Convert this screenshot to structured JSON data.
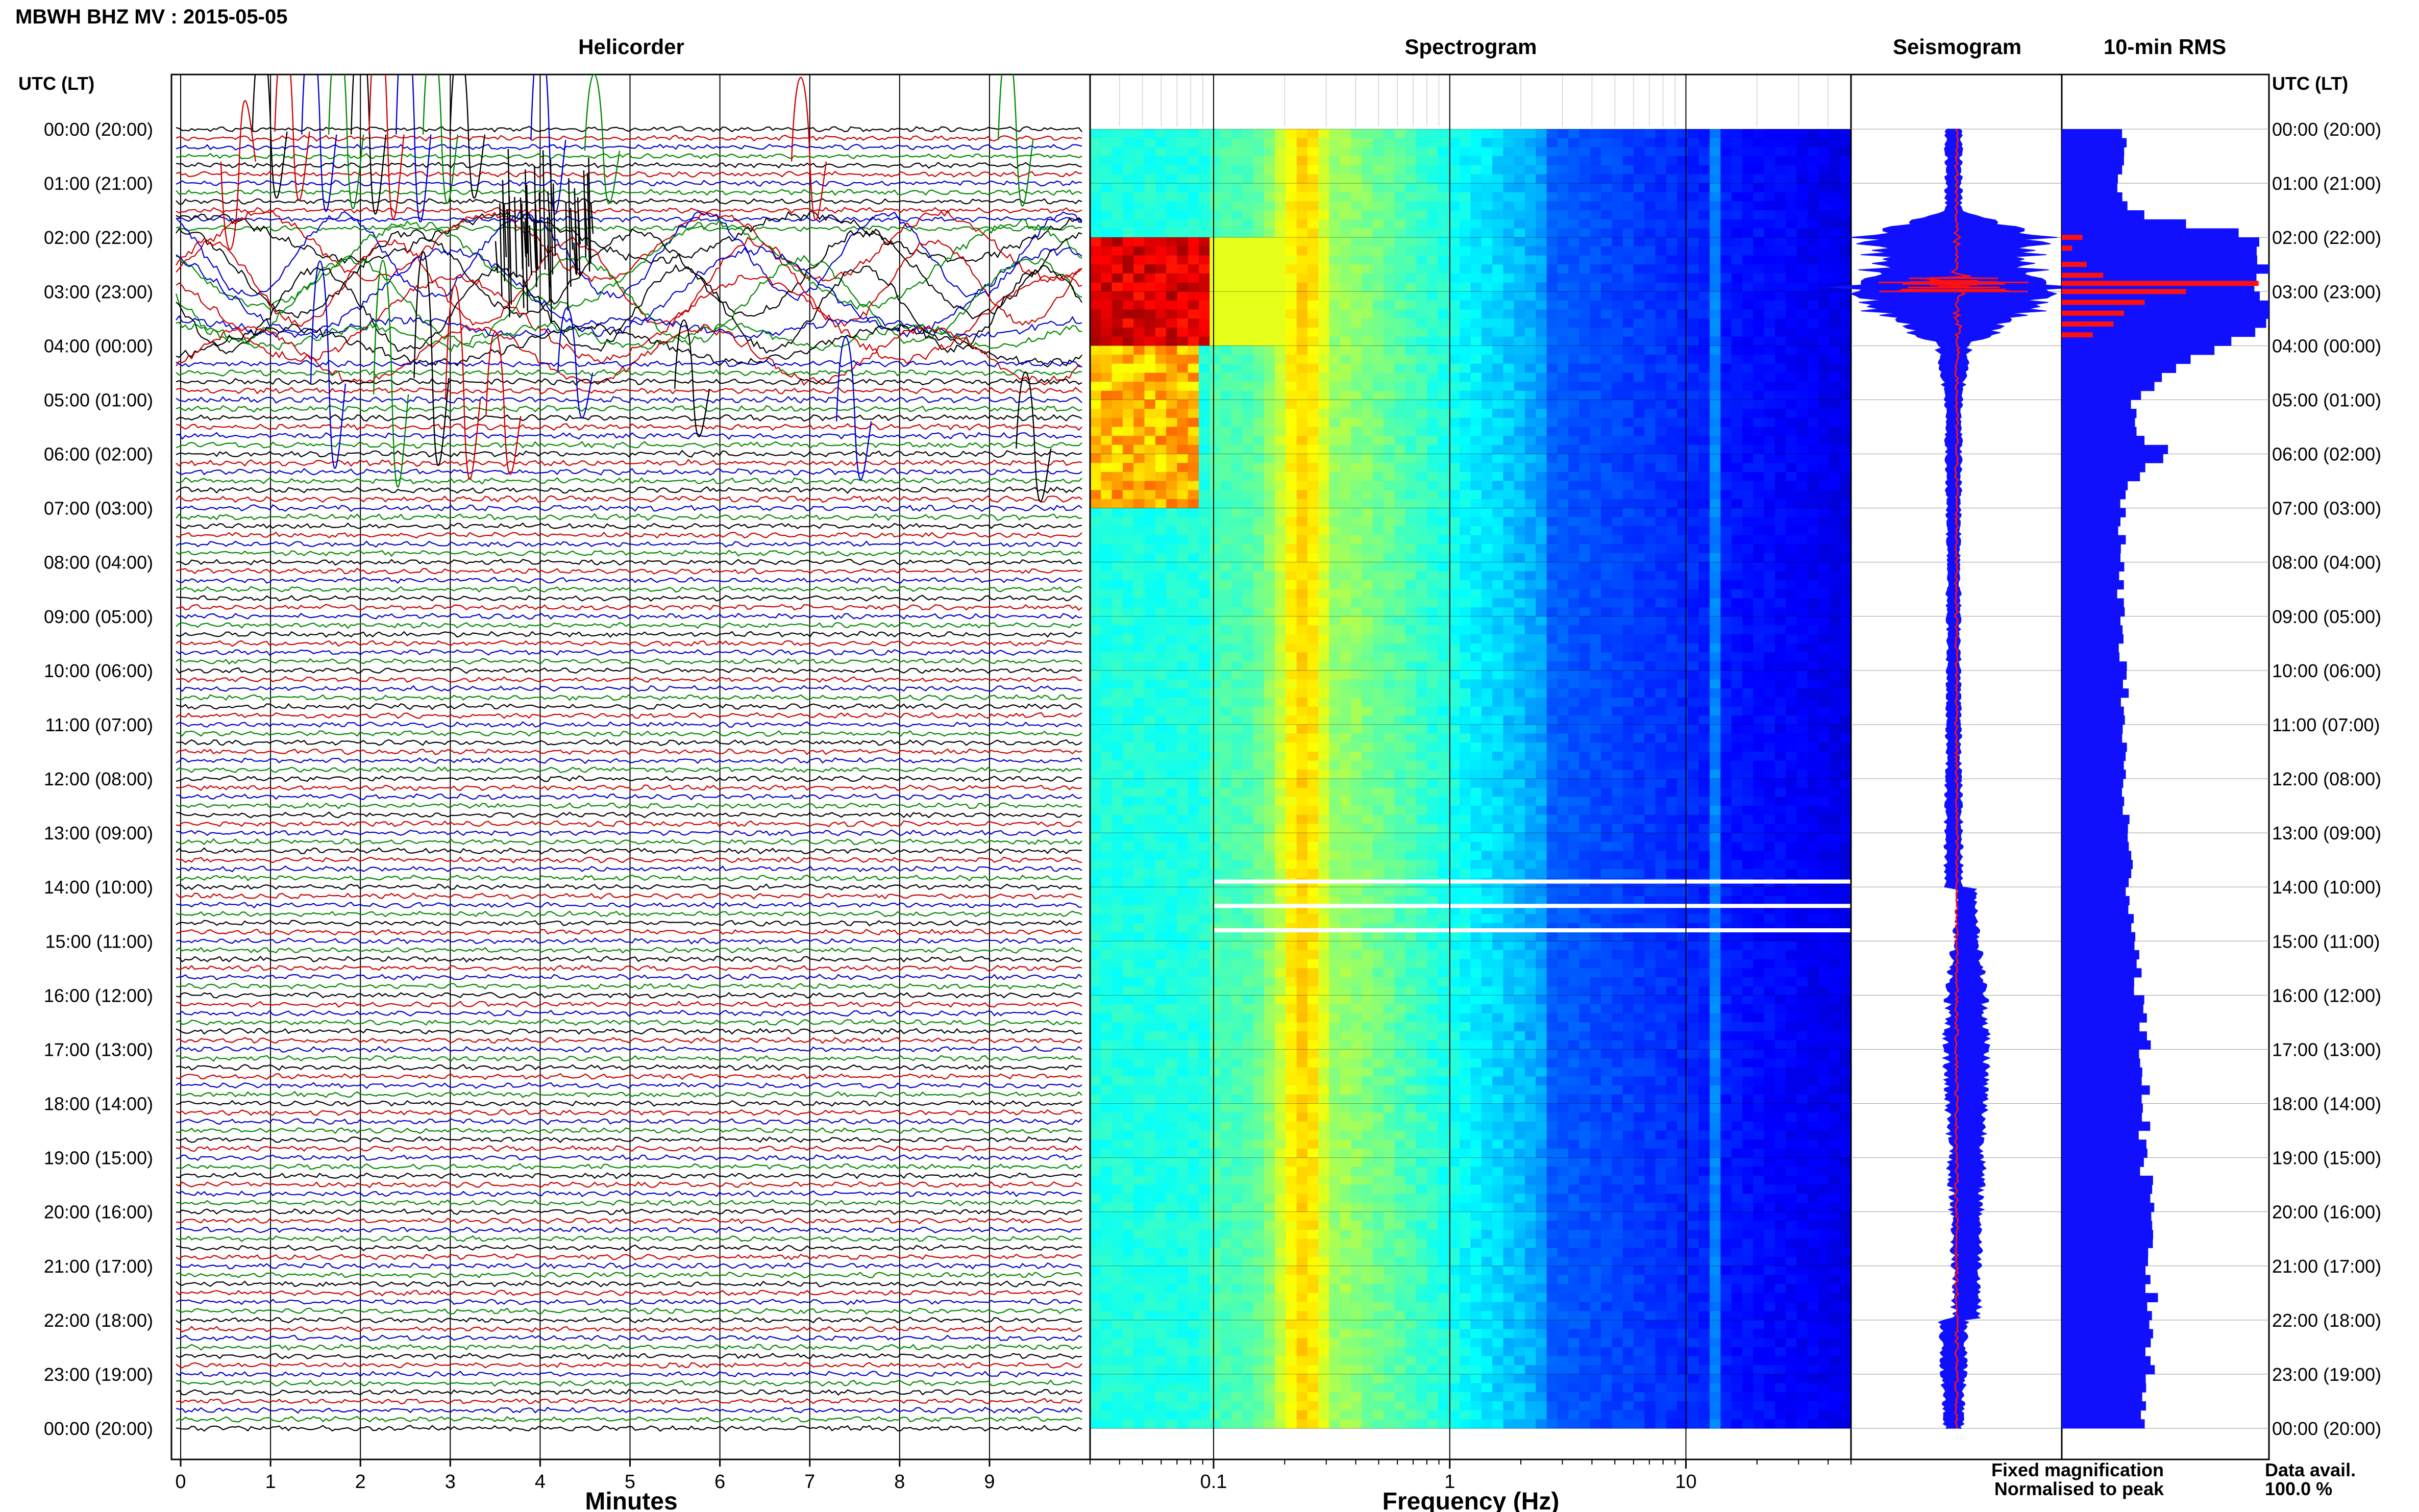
{
  "figure": {
    "title": "MBWH BHZ MV : 2015-05-05",
    "utc_header": "UTC (LT)",
    "panels": {
      "helicorder_title": "Helicorder",
      "spectrogram_title": "Spectrogram",
      "seismogram_title": "Seismogram",
      "rms_title": "10-min RMS"
    },
    "legend": {
      "fixed": "Fixed magnification",
      "normalised": "Normalised to peak",
      "fixed_color": "#1010ff",
      "normalised_color": "#ff1010"
    },
    "data_avail_label": "Data avail.",
    "data_avail_value": "100.0 %"
  },
  "chart_data": [
    {
      "type": "line",
      "panel": "helicorder",
      "xlabel": "Minutes",
      "xlim": [
        0,
        10
      ],
      "x_ticks": [
        "0",
        "1",
        "2",
        "3",
        "4",
        "5",
        "6",
        "7",
        "8",
        "9"
      ],
      "row_interval_min": 10,
      "trace_colors": [
        "#000000",
        "#cc0000",
        "#0000cc",
        "#008800"
      ],
      "time_labels": [
        "00:00 (20:00)",
        "01:00 (21:00)",
        "02:00 (22:00)",
        "03:00 (23:00)",
        "04:00 (00:00)",
        "05:00 (01:00)",
        "06:00 (02:00)",
        "07:00 (03:00)",
        "08:00 (04:00)",
        "09:00 (05:00)",
        "10:00 (06:00)",
        "11:00 (07:00)",
        "12:00 (08:00)",
        "13:00 (09:00)",
        "14:00 (10:00)",
        "15:00 (11:00)",
        "16:00 (12:00)",
        "17:00 (13:00)",
        "18:00 (14:00)",
        "19:00 (15:00)",
        "20:00 (16:00)",
        "21:00 (17:00)",
        "22:00 (18:00)",
        "23:00 (19:00)",
        "00:00 (20:00)"
      ],
      "events": [
        {
          "hour": 2.0,
          "description_kind": "large long-period signal",
          "peak_hours": [
            2.0,
            4.0
          ]
        },
        {
          "hour": 2.85,
          "description_kind": "largest amplitude",
          "peak_hours": [
            2.7,
            3.2
          ]
        }
      ]
    },
    {
      "type": "heatmap",
      "panel": "spectrogram",
      "xlabel": "Frequency (Hz)",
      "x_scale": "log",
      "xlim": [
        0.03,
        50
      ],
      "x_ticks": [
        "0.1",
        "1",
        "10"
      ],
      "ylim_hours": [
        0,
        24
      ],
      "colormap": "jet",
      "features": {
        "noise_peak_band_hz": [
          0.18,
          0.3
        ],
        "persistent_line_hz": 13,
        "low_freq_energy_hours": [
          2.0,
          4.0
        ],
        "gap_hours": [
          13.9,
          14.35,
          14.8
        ]
      }
    },
    {
      "type": "line",
      "panel": "seismogram",
      "series": [
        {
          "name": "Fixed magnification",
          "color": "#1010ff"
        },
        {
          "name": "Normalised to peak",
          "color": "#ff1010"
        }
      ],
      "ylim_hours": [
        0,
        24
      ],
      "envelope_profile": {
        "hours": [
          0,
          0.5,
          1,
          1.5,
          2,
          2.5,
          2.9,
          3.3,
          4,
          5,
          6,
          8,
          10,
          12,
          14,
          15,
          16,
          17,
          18,
          19,
          20,
          21,
          22,
          23,
          24
        ],
        "half_width": [
          0.08,
          0.07,
          0.07,
          0.07,
          0.85,
          0.7,
          1.0,
          0.8,
          0.15,
          0.08,
          0.07,
          0.06,
          0.06,
          0.07,
          0.08,
          0.12,
          0.18,
          0.2,
          0.18,
          0.16,
          0.14,
          0.13,
          0.12,
          0.11,
          0.08
        ]
      }
    },
    {
      "type": "bar",
      "panel": "rms",
      "orientation": "horizontal",
      "bin_minutes": 10,
      "ylim_hours": [
        0,
        24
      ],
      "profile": {
        "hours": [
          0,
          0.5,
          1,
          1.5,
          2,
          2.5,
          3,
          3.5,
          4,
          4.5,
          5,
          5.5,
          6,
          6.5,
          7,
          8,
          10,
          12,
          14,
          15,
          16,
          17,
          18,
          19,
          20,
          21,
          22,
          23,
          24
        ],
        "relative_rms": [
          0.3,
          0.28,
          0.28,
          0.3,
          1.0,
          1.0,
          1.0,
          1.0,
          0.75,
          0.5,
          0.35,
          0.35,
          0.5,
          0.32,
          0.3,
          0.28,
          0.3,
          0.3,
          0.33,
          0.36,
          0.38,
          0.4,
          0.4,
          0.4,
          0.42,
          0.42,
          0.44,
          0.42,
          0.38
        ]
      },
      "normalised_bars_hours": [
        2.0,
        2.2,
        2.5,
        2.7,
        2.85,
        3.0,
        3.2,
        3.4,
        3.6,
        3.8
      ]
    }
  ]
}
